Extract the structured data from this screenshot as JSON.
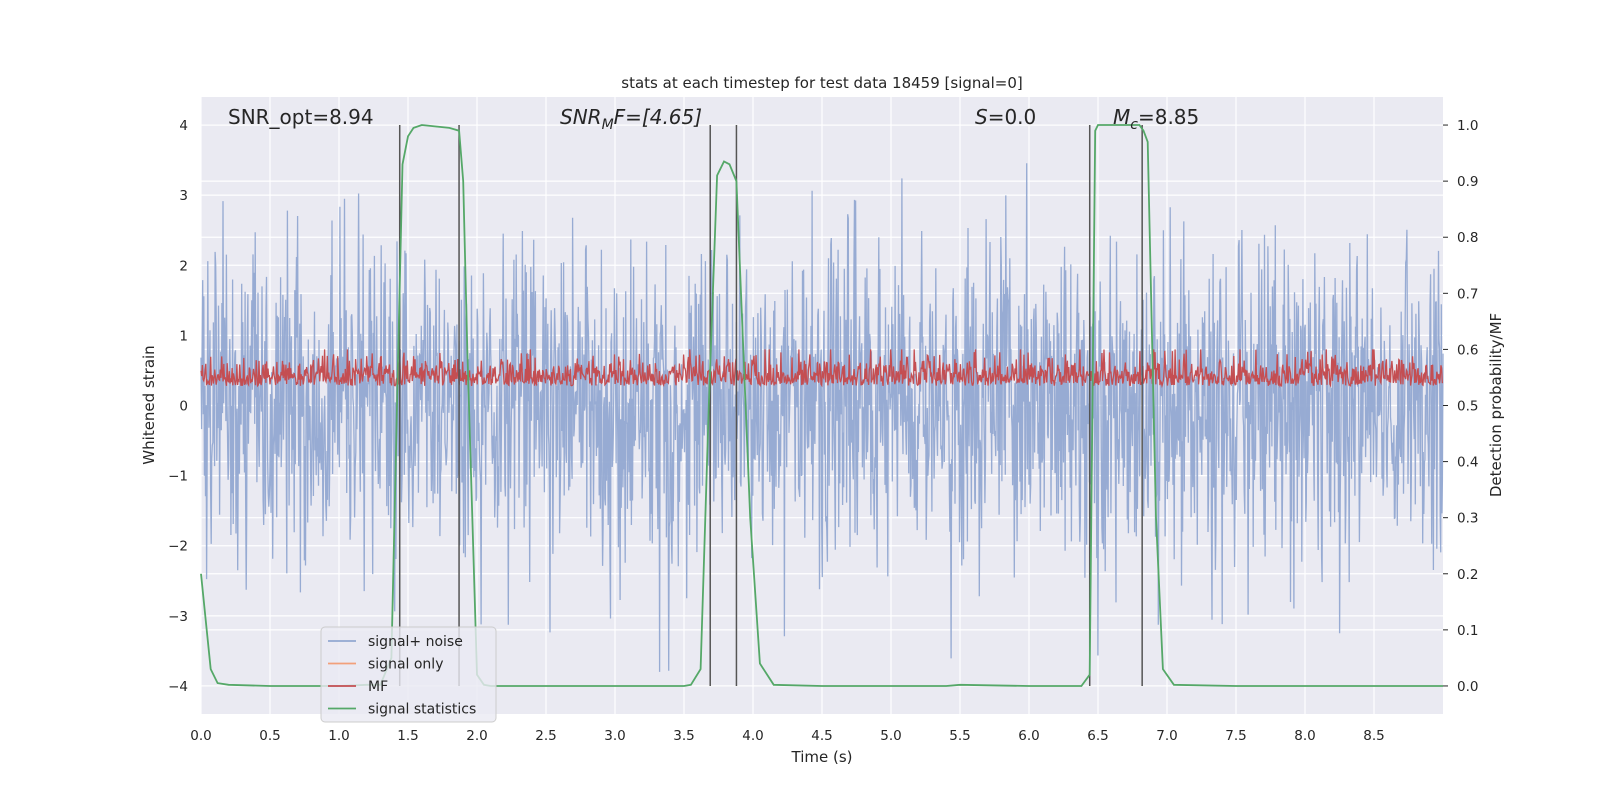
{
  "chart_data": {
    "type": "line",
    "title": "stats at each timestep for test data 18459 [signal=0]",
    "xlabel": "Time (s)",
    "ylabel_left": "Whitened strain",
    "ylabel_right": "Detection probability/MF",
    "xlim": [
      0.0,
      9.0
    ],
    "ylim_left": [
      -4.4,
      4.4
    ],
    "ylim_right": [
      -0.05,
      1.05
    ],
    "x_ticks": [
      "0.0",
      "0.5",
      "1.0",
      "1.5",
      "2.0",
      "2.5",
      "3.0",
      "3.5",
      "4.0",
      "4.5",
      "5.0",
      "5.5",
      "6.0",
      "6.5",
      "7.0",
      "7.5",
      "8.0",
      "8.5"
    ],
    "y_ticks_left": [
      "−4",
      "−3",
      "−2",
      "−1",
      "0",
      "1",
      "2",
      "3",
      "4"
    ],
    "y_ticks_right": [
      "0.0",
      "0.1",
      "0.2",
      "0.3",
      "0.4",
      "0.5",
      "0.6",
      "0.7",
      "0.8",
      "0.9",
      "1.0"
    ],
    "annotations": {
      "snr_opt": "SNR_opt=8.94",
      "snr_mf_main": "SNR",
      "snr_mf_sub": "M",
      "snr_mf_rest": "F=[4.65]",
      "s_main": "S",
      "s_rest": "=0.0",
      "mc_main": "M",
      "mc_sub": "c",
      "mc_rest": "=8.85"
    },
    "vertical_markers": [
      1.44,
      1.87,
      3.69,
      3.88,
      6.44,
      6.82
    ],
    "series": [
      {
        "name": "signal+ noise",
        "color": "#92a8d1",
        "kind": "noise",
        "amplitude_range": [
          -3.8,
          3.6
        ]
      },
      {
        "name": "signal only",
        "color": "#f2a07a",
        "kind": "flat",
        "value": 0.0
      },
      {
        "name": "MF",
        "color": "#c44e52",
        "kind": "mf",
        "axis": "right",
        "range": [
          0.5,
          0.6
        ]
      },
      {
        "name": "signal statistics",
        "color": "#55a868",
        "axis": "right",
        "x": [
          0.0,
          0.07,
          0.12,
          0.2,
          0.5,
          1.0,
          1.2,
          1.3,
          1.38,
          1.42,
          1.46,
          1.5,
          1.54,
          1.6,
          1.8,
          1.87,
          1.9,
          1.93,
          2.0,
          2.05,
          2.1,
          2.5,
          3.0,
          3.5,
          3.55,
          3.62,
          3.68,
          3.74,
          3.79,
          3.83,
          3.88,
          3.93,
          3.98,
          4.05,
          4.15,
          4.5,
          5.0,
          5.4,
          5.5,
          6.0,
          6.38,
          6.44,
          6.48,
          6.5,
          6.8,
          6.83,
          6.86,
          6.92,
          6.97,
          7.05,
          7.5,
          8.0,
          8.5,
          9.0
        ],
        "y": [
          0.2,
          0.03,
          0.005,
          0.002,
          0.0,
          0.0,
          0.002,
          0.002,
          0.05,
          0.5,
          0.93,
          0.98,
          0.995,
          1.0,
          0.995,
          0.99,
          0.9,
          0.6,
          0.02,
          0.002,
          0.0,
          0.0,
          0.0,
          0.0,
          0.002,
          0.03,
          0.5,
          0.91,
          0.935,
          0.93,
          0.9,
          0.6,
          0.3,
          0.04,
          0.002,
          0.0,
          0.0,
          0.0,
          0.002,
          0.0,
          0.0,
          0.02,
          0.99,
          1.0,
          1.0,
          0.99,
          0.97,
          0.3,
          0.03,
          0.002,
          0.0,
          0.0,
          0.0,
          0.0
        ]
      }
    ],
    "legend": [
      "signal+ noise",
      "signal only",
      "MF",
      "signal statistics"
    ],
    "legend_position": "lower-left",
    "grid": true
  }
}
